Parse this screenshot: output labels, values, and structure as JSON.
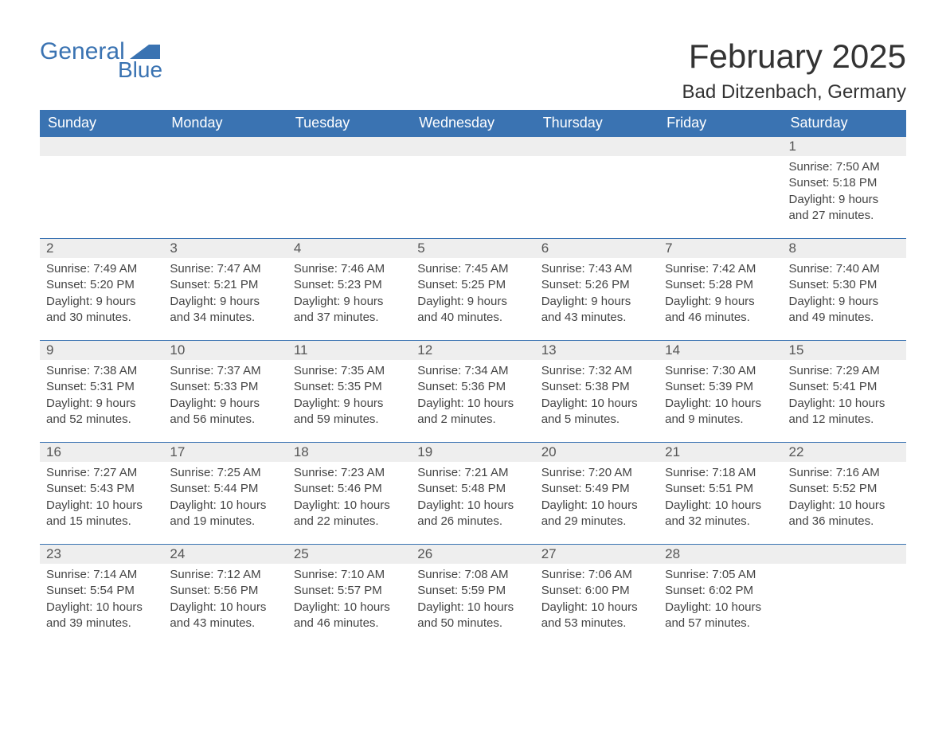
{
  "logo": {
    "text_general": "General",
    "text_blue": "Blue",
    "color": "#3a73b2"
  },
  "header": {
    "month_title": "February 2025",
    "location": "Bad Ditzenbach, Germany"
  },
  "styling": {
    "header_bg": "#3a73b2",
    "header_text_color": "#ffffff",
    "daynum_bg": "#eeeeee",
    "week_separator_color": "#3a73b2",
    "body_text_color": "#444444",
    "page_bg": "#ffffff",
    "font_family": "Arial, Helvetica, sans-serif",
    "month_title_fontsize": 42,
    "location_fontsize": 24,
    "header_fontsize": 18,
    "cell_fontsize": 15
  },
  "weekdays": [
    "Sunday",
    "Monday",
    "Tuesday",
    "Wednesday",
    "Thursday",
    "Friday",
    "Saturday"
  ],
  "weeks": [
    [
      null,
      null,
      null,
      null,
      null,
      null,
      {
        "day": "1",
        "sunrise": "Sunrise: 7:50 AM",
        "sunset": "Sunset: 5:18 PM",
        "daylight1": "Daylight: 9 hours",
        "daylight2": "and 27 minutes."
      }
    ],
    [
      {
        "day": "2",
        "sunrise": "Sunrise: 7:49 AM",
        "sunset": "Sunset: 5:20 PM",
        "daylight1": "Daylight: 9 hours",
        "daylight2": "and 30 minutes."
      },
      {
        "day": "3",
        "sunrise": "Sunrise: 7:47 AM",
        "sunset": "Sunset: 5:21 PM",
        "daylight1": "Daylight: 9 hours",
        "daylight2": "and 34 minutes."
      },
      {
        "day": "4",
        "sunrise": "Sunrise: 7:46 AM",
        "sunset": "Sunset: 5:23 PM",
        "daylight1": "Daylight: 9 hours",
        "daylight2": "and 37 minutes."
      },
      {
        "day": "5",
        "sunrise": "Sunrise: 7:45 AM",
        "sunset": "Sunset: 5:25 PM",
        "daylight1": "Daylight: 9 hours",
        "daylight2": "and 40 minutes."
      },
      {
        "day": "6",
        "sunrise": "Sunrise: 7:43 AM",
        "sunset": "Sunset: 5:26 PM",
        "daylight1": "Daylight: 9 hours",
        "daylight2": "and 43 minutes."
      },
      {
        "day": "7",
        "sunrise": "Sunrise: 7:42 AM",
        "sunset": "Sunset: 5:28 PM",
        "daylight1": "Daylight: 9 hours",
        "daylight2": "and 46 minutes."
      },
      {
        "day": "8",
        "sunrise": "Sunrise: 7:40 AM",
        "sunset": "Sunset: 5:30 PM",
        "daylight1": "Daylight: 9 hours",
        "daylight2": "and 49 minutes."
      }
    ],
    [
      {
        "day": "9",
        "sunrise": "Sunrise: 7:38 AM",
        "sunset": "Sunset: 5:31 PM",
        "daylight1": "Daylight: 9 hours",
        "daylight2": "and 52 minutes."
      },
      {
        "day": "10",
        "sunrise": "Sunrise: 7:37 AM",
        "sunset": "Sunset: 5:33 PM",
        "daylight1": "Daylight: 9 hours",
        "daylight2": "and 56 minutes."
      },
      {
        "day": "11",
        "sunrise": "Sunrise: 7:35 AM",
        "sunset": "Sunset: 5:35 PM",
        "daylight1": "Daylight: 9 hours",
        "daylight2": "and 59 minutes."
      },
      {
        "day": "12",
        "sunrise": "Sunrise: 7:34 AM",
        "sunset": "Sunset: 5:36 PM",
        "daylight1": "Daylight: 10 hours",
        "daylight2": "and 2 minutes."
      },
      {
        "day": "13",
        "sunrise": "Sunrise: 7:32 AM",
        "sunset": "Sunset: 5:38 PM",
        "daylight1": "Daylight: 10 hours",
        "daylight2": "and 5 minutes."
      },
      {
        "day": "14",
        "sunrise": "Sunrise: 7:30 AM",
        "sunset": "Sunset: 5:39 PM",
        "daylight1": "Daylight: 10 hours",
        "daylight2": "and 9 minutes."
      },
      {
        "day": "15",
        "sunrise": "Sunrise: 7:29 AM",
        "sunset": "Sunset: 5:41 PM",
        "daylight1": "Daylight: 10 hours",
        "daylight2": "and 12 minutes."
      }
    ],
    [
      {
        "day": "16",
        "sunrise": "Sunrise: 7:27 AM",
        "sunset": "Sunset: 5:43 PM",
        "daylight1": "Daylight: 10 hours",
        "daylight2": "and 15 minutes."
      },
      {
        "day": "17",
        "sunrise": "Sunrise: 7:25 AM",
        "sunset": "Sunset: 5:44 PM",
        "daylight1": "Daylight: 10 hours",
        "daylight2": "and 19 minutes."
      },
      {
        "day": "18",
        "sunrise": "Sunrise: 7:23 AM",
        "sunset": "Sunset: 5:46 PM",
        "daylight1": "Daylight: 10 hours",
        "daylight2": "and 22 minutes."
      },
      {
        "day": "19",
        "sunrise": "Sunrise: 7:21 AM",
        "sunset": "Sunset: 5:48 PM",
        "daylight1": "Daylight: 10 hours",
        "daylight2": "and 26 minutes."
      },
      {
        "day": "20",
        "sunrise": "Sunrise: 7:20 AM",
        "sunset": "Sunset: 5:49 PM",
        "daylight1": "Daylight: 10 hours",
        "daylight2": "and 29 minutes."
      },
      {
        "day": "21",
        "sunrise": "Sunrise: 7:18 AM",
        "sunset": "Sunset: 5:51 PM",
        "daylight1": "Daylight: 10 hours",
        "daylight2": "and 32 minutes."
      },
      {
        "day": "22",
        "sunrise": "Sunrise: 7:16 AM",
        "sunset": "Sunset: 5:52 PM",
        "daylight1": "Daylight: 10 hours",
        "daylight2": "and 36 minutes."
      }
    ],
    [
      {
        "day": "23",
        "sunrise": "Sunrise: 7:14 AM",
        "sunset": "Sunset: 5:54 PM",
        "daylight1": "Daylight: 10 hours",
        "daylight2": "and 39 minutes."
      },
      {
        "day": "24",
        "sunrise": "Sunrise: 7:12 AM",
        "sunset": "Sunset: 5:56 PM",
        "daylight1": "Daylight: 10 hours",
        "daylight2": "and 43 minutes."
      },
      {
        "day": "25",
        "sunrise": "Sunrise: 7:10 AM",
        "sunset": "Sunset: 5:57 PM",
        "daylight1": "Daylight: 10 hours",
        "daylight2": "and 46 minutes."
      },
      {
        "day": "26",
        "sunrise": "Sunrise: 7:08 AM",
        "sunset": "Sunset: 5:59 PM",
        "daylight1": "Daylight: 10 hours",
        "daylight2": "and 50 minutes."
      },
      {
        "day": "27",
        "sunrise": "Sunrise: 7:06 AM",
        "sunset": "Sunset: 6:00 PM",
        "daylight1": "Daylight: 10 hours",
        "daylight2": "and 53 minutes."
      },
      {
        "day": "28",
        "sunrise": "Sunrise: 7:05 AM",
        "sunset": "Sunset: 6:02 PM",
        "daylight1": "Daylight: 10 hours",
        "daylight2": "and 57 minutes."
      },
      null
    ]
  ]
}
